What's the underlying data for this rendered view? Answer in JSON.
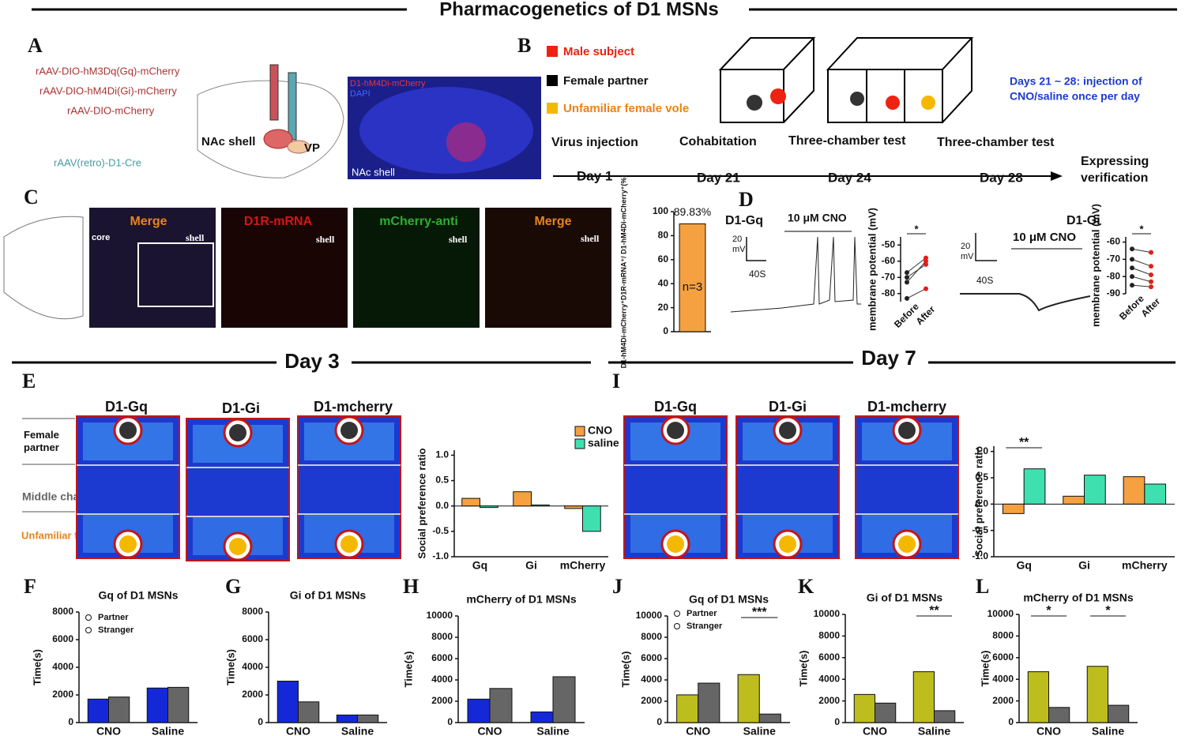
{
  "title": "Pharmacogenetics of D1 MSNs",
  "panel_letters": [
    "A",
    "B",
    "C",
    "D",
    "E",
    "F",
    "G",
    "H",
    "I",
    "J",
    "K",
    "L"
  ],
  "panel_a": {
    "viruses": [
      "rAAV-DIO-hM3Dq(Gq)-mCherry",
      "rAAV-DIO-hM4Di(Gi)-mCherry",
      "rAAV-DIO-mCherry"
    ],
    "retro": "rAAV(retro)-D1-Cre",
    "regions": [
      "NAc shell",
      "VP"
    ],
    "image_labels": [
      "D1-hM4Di-mCherry",
      "DAPI",
      "NAc shell"
    ]
  },
  "panel_b": {
    "legend": [
      "Male subject",
      "Female partner",
      "Unfamiliar female vole"
    ],
    "steps": [
      "Virus injection",
      "Cohabitation",
      "Three-chamber test",
      "Three-chamber test"
    ],
    "days": [
      "Day 1",
      "Day 21",
      "Day 24",
      "Day 28"
    ],
    "end": [
      "Expressing",
      "verification"
    ],
    "note": [
      "Days 21 ~ 28: injection of",
      "CNO/saline once per day"
    ]
  },
  "panel_c": {
    "images": [
      "Merge",
      "D1R-mRNA",
      "mCherry-anti",
      "Merge"
    ],
    "core": "core",
    "shell": "shell"
  },
  "panel_d": {
    "gq": "D1-Gq",
    "gi": "D1-Gi",
    "drug": "10 μM CNO",
    "scale_v": [
      "20",
      "mV"
    ],
    "scale_t": "40S"
  },
  "sections": [
    "Day 3",
    "Day 7"
  ],
  "tracks": {
    "groups_e": [
      "D1-Gq",
      "D1-Gi",
      "D1-mcherry"
    ],
    "groups_i": [
      "D1-Gq",
      "D1-Gi",
      "D1-mcherry"
    ],
    "rows": [
      "Female partner",
      "Middle chamber",
      "Unfamiliar female"
    ]
  },
  "chart_data": [
    {
      "type": "bar",
      "ylabel": "D1-hM4Di-mCherry⁺D1R-mRNA⁺/ D1-hM4Di-mCherry⁺(%)",
      "categories": [
        null
      ],
      "series": [
        {
          "color": "#f5a142",
          "values": [
            89.83
          ],
          "value_labels": [
            "89.83%"
          ]
        }
      ],
      "ylim": [
        0,
        100
      ],
      "yticks": [
        0,
        20,
        40,
        60,
        80,
        100
      ],
      "annotations": [
        {
          "text": "n=3",
          "inside": true
        }
      ]
    },
    {
      "type": "line",
      "ylabel": "membrane potential (mV)",
      "categories": [
        "Before",
        "After"
      ],
      "point_colors": [
        "#222222",
        "#e0201b"
      ],
      "series": [
        {
          "values": [
            -67,
            -58
          ]
        },
        {
          "values": [
            -70,
            -62
          ]
        },
        {
          "values": [
            -73,
            -60
          ]
        },
        {
          "values": [
            -83,
            -77
          ]
        }
      ],
      "ylim": [
        -85,
        -45
      ],
      "yticks": [
        -50,
        -60,
        -70,
        -80
      ],
      "annotations": [
        {
          "text": "*"
        }
      ]
    },
    {
      "type": "line",
      "ylabel": "membrane potential (mV)",
      "categories": [
        "Before",
        "After"
      ],
      "point_colors": [
        "#222222",
        "#e0201b"
      ],
      "series": [
        {
          "values": [
            -64,
            -66
          ]
        },
        {
          "values": [
            -70,
            -74
          ]
        },
        {
          "values": [
            -75,
            -79
          ]
        },
        {
          "values": [
            -80,
            -83
          ]
        },
        {
          "values": [
            -85,
            -86
          ]
        }
      ],
      "ylim": [
        -90,
        -57
      ],
      "yticks": [
        -60,
        -70,
        -80,
        -90
      ],
      "annotations": [
        {
          "text": "*"
        }
      ]
    },
    {
      "type": "bar",
      "ylabel": "Social preference ratio",
      "categories": [
        "Gq",
        "Gi",
        "mCherry"
      ],
      "series": [
        {
          "name": "CNO",
          "color": "#f5a142",
          "values": [
            0.15,
            0.28,
            -0.05
          ]
        },
        {
          "name": "saline",
          "color": "#3fe0b0",
          "values": [
            -0.03,
            0.02,
            -0.5
          ]
        }
      ],
      "ylim": [
        -1,
        1.1
      ],
      "yticks": [
        {
          "value": -1,
          "label": "-1.0"
        },
        -0.5,
        {
          "value": 0,
          "label": "0.0"
        },
        0.5,
        {
          "value": 1,
          "label": "1.0"
        }
      ],
      "legend": true
    },
    {
      "type": "bar",
      "ylabel": "Social preference ratio",
      "categories": [
        "Gq",
        "Gi",
        "mCherry"
      ],
      "series": [
        {
          "name": "CNO",
          "color": "#f5a142",
          "values": [
            -0.18,
            0.15,
            0.52
          ]
        },
        {
          "name": "saline",
          "color": "#3fe0b0",
          "values": [
            0.67,
            0.55,
            0.38
          ]
        }
      ],
      "ylim": [
        -1,
        1.1
      ],
      "yticks": [
        {
          "value": -1,
          "label": "-1.0"
        },
        -0.5,
        {
          "value": 0,
          "label": "0.0"
        },
        0.5,
        {
          "value": 1,
          "label": "1.0"
        }
      ],
      "annotations": [
        {
          "text": "**",
          "category": "Gq"
        }
      ]
    },
    {
      "type": "bar",
      "title": "Gq of D1  MSNs",
      "ylabel": "Time(s)",
      "categories": [
        "CNO",
        "Saline"
      ],
      "series": [
        {
          "name": "Partner",
          "color": "#1428d8",
          "values": [
            1700,
            2500
          ]
        },
        {
          "name": "Stranger",
          "color": "#666666",
          "values": [
            1850,
            2550
          ]
        }
      ],
      "ylim": [
        0,
        8000
      ],
      "yticks": [
        0,
        2000,
        4000,
        6000,
        8000
      ],
      "legend": true
    },
    {
      "type": "bar",
      "title": "Gi of D1  MSNs",
      "ylabel": "Time(s)",
      "categories": [
        "CNO",
        "Saline"
      ],
      "series": [
        {
          "color": "#1428d8",
          "values": [
            3000,
            550
          ]
        },
        {
          "color": "#666666",
          "values": [
            1500,
            550
          ]
        }
      ],
      "ylim": [
        0,
        8000
      ],
      "yticks": [
        0,
        2000,
        4000,
        6000,
        8000
      ]
    },
    {
      "type": "bar",
      "title": "mCherry of D1  MSNs",
      "ylabel": "Time(s)",
      "categories": [
        "CNO",
        "Saline"
      ],
      "series": [
        {
          "color": "#1428d8",
          "values": [
            2200,
            1000
          ]
        },
        {
          "color": "#666666",
          "values": [
            3200,
            4300
          ]
        }
      ],
      "ylim": [
        0,
        10000
      ],
      "yticks": [
        0,
        2000,
        4000,
        6000,
        8000,
        10000
      ]
    },
    {
      "type": "bar",
      "title": "Gq of D1 MSNs",
      "ylabel": "Time(s)",
      "categories": [
        "CNO",
        "Saline"
      ],
      "series": [
        {
          "name": "Partner",
          "color": "#bdbd1e",
          "values": [
            2600,
            4500
          ]
        },
        {
          "name": "Stranger",
          "color": "#666666",
          "values": [
            3700,
            800
          ]
        }
      ],
      "ylim": [
        0,
        10000
      ],
      "yticks": [
        0,
        2000,
        4000,
        6000,
        8000,
        10000
      ],
      "legend": true,
      "annotations": [
        {
          "text": "***",
          "category": "Saline"
        }
      ]
    },
    {
      "type": "bar",
      "title": "Gi of D1 MSNs",
      "ylabel": "Time(s)",
      "categories": [
        "CNO",
        "Saline"
      ],
      "series": [
        {
          "color": "#bdbd1e",
          "values": [
            2600,
            4700
          ]
        },
        {
          "color": "#666666",
          "values": [
            1800,
            1100
          ]
        }
      ],
      "ylim": [
        0,
        10000
      ],
      "yticks": [
        0,
        2000,
        4000,
        6000,
        8000,
        10000
      ],
      "annotations": [
        {
          "text": "**",
          "category": "Saline"
        }
      ]
    },
    {
      "type": "bar",
      "title": "mCherry of D1 MSNs",
      "ylabel": "Time(s)",
      "categories": [
        "CNO",
        "Saline"
      ],
      "series": [
        {
          "color": "#bdbd1e",
          "values": [
            4700,
            5200
          ]
        },
        {
          "color": "#666666",
          "values": [
            1400,
            1600
          ]
        }
      ],
      "ylim": [
        0,
        10000
      ],
      "yticks": [
        0,
        2000,
        4000,
        6000,
        8000,
        10000
      ],
      "annotations": [
        {
          "text": "*",
          "category": "CNO"
        },
        {
          "text": "*",
          "category": "Saline"
        }
      ]
    }
  ]
}
